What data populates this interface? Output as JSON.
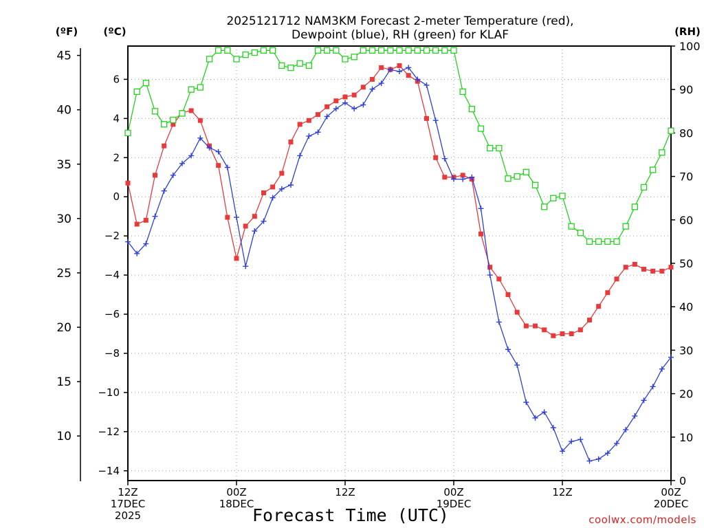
{
  "chart_data": {
    "type": "line",
    "title_line1": "2025121712 NAM3KM Forecast 2-meter Temperature (red),",
    "title_line2": "Dewpoint (blue), RH (green) for KLAF",
    "unit_f": "(ºF)",
    "unit_c": "(ºC)",
    "unit_rh": "(RH)",
    "xlabel": "Forecast Time (UTC)",
    "credit": "coolwx.com/models",
    "x_ticks": [
      {
        "hour": 0,
        "line1": "12Z",
        "line2": "17DEC",
        "line3": "2025"
      },
      {
        "hour": 12,
        "line1": "00Z",
        "line2": "18DEC",
        "line3": ""
      },
      {
        "hour": 24,
        "line1": "12Z",
        "line2": "",
        "line3": ""
      },
      {
        "hour": 36,
        "line1": "00Z",
        "line2": "19DEC",
        "line3": ""
      },
      {
        "hour": 48,
        "line1": "12Z",
        "line2": "",
        "line3": ""
      },
      {
        "hour": 60,
        "line1": "00Z",
        "line2": "20DEC",
        "line3": ""
      }
    ],
    "x_range_hours": [
      0,
      60
    ],
    "ylim_c": [
      -14.5,
      7.7
    ],
    "ylim_rh": [
      0,
      100
    ],
    "y_ticks_c": [
      "6",
      "4",
      "2",
      "0",
      "−2",
      "−4",
      "−6",
      "−8",
      "−10",
      "−12",
      "−14"
    ],
    "y_ticks_c_values": [
      6,
      4,
      2,
      0,
      -2,
      -4,
      -6,
      -8,
      -10,
      -12,
      -14
    ],
    "y_ticks_f": [
      "45",
      "40",
      "35",
      "30",
      "25",
      "20",
      "15",
      "10"
    ],
    "y_ticks_f_values": [
      45,
      40,
      35,
      30,
      25,
      20,
      15,
      10
    ],
    "y_ticks_rh": [
      "100",
      "90",
      "80",
      "70",
      "60",
      "50",
      "40",
      "30",
      "20",
      "10",
      "0"
    ],
    "y_ticks_rh_values": [
      100,
      90,
      80,
      70,
      60,
      50,
      40,
      30,
      20,
      10,
      0
    ],
    "series": [
      {
        "name": "Temperature (°C)",
        "color": "#e8393b",
        "marker": "filled-square",
        "axis": "c",
        "x": [
          0,
          1,
          2,
          3,
          4,
          5,
          6,
          7,
          8,
          9,
          10,
          11,
          12,
          13,
          14,
          15,
          16,
          17,
          18,
          19,
          20,
          21,
          22,
          23,
          24,
          25,
          26,
          27,
          28,
          29,
          30,
          31,
          32,
          33,
          34,
          35,
          36,
          37,
          38,
          39,
          40,
          41,
          42,
          43,
          44,
          45,
          46,
          47,
          48,
          49,
          50,
          51,
          52,
          53,
          54,
          55,
          56,
          57,
          58,
          59,
          60
        ],
        "values": [
          0.7,
          -1.4,
          -1.2,
          1.1,
          2.6,
          3.7,
          4.3,
          4.4,
          3.9,
          2.6,
          1.6,
          -1.05,
          -3.15,
          -1.5,
          -1.0,
          0.2,
          0.5,
          1.2,
          2.8,
          3.7,
          3.9,
          4.2,
          4.6,
          4.9,
          5.1,
          5.2,
          5.6,
          6.0,
          6.6,
          6.5,
          6.7,
          6.2,
          5.9,
          4.0,
          2.0,
          1.0,
          1.0,
          1.1,
          0.9,
          -1.9,
          -3.6,
          -4.2,
          -5.0,
          -5.9,
          -6.6,
          -6.6,
          -6.8,
          -7.1,
          -7.0,
          -7.0,
          -6.8,
          -6.3,
          -5.6,
          -4.9,
          -4.2,
          -3.6,
          -3.45,
          -3.7,
          -3.8,
          -3.8,
          -3.6
        ]
      },
      {
        "name": "Dewpoint (°C)",
        "color": "#2c3fdc",
        "marker": "plus",
        "axis": "c",
        "x": [
          0,
          1,
          2,
          3,
          4,
          5,
          6,
          7,
          8,
          9,
          10,
          11,
          12,
          13,
          14,
          15,
          16,
          17,
          18,
          19,
          20,
          21,
          22,
          23,
          24,
          25,
          26,
          27,
          28,
          29,
          30,
          31,
          32,
          33,
          34,
          35,
          36,
          37,
          38,
          39,
          40,
          41,
          42,
          43,
          44,
          45,
          46,
          47,
          48,
          49,
          50,
          51,
          52,
          53,
          54,
          55,
          56,
          57,
          58,
          59,
          60
        ],
        "values": [
          -2.3,
          -2.9,
          -2.4,
          -1.0,
          0.3,
          1.1,
          1.7,
          2.1,
          3.0,
          2.5,
          2.3,
          1.5,
          -1.05,
          -3.55,
          -1.75,
          -1.25,
          -0.05,
          0.4,
          0.6,
          2.1,
          3.1,
          3.3,
          4.1,
          4.5,
          4.8,
          4.5,
          4.7,
          5.5,
          5.8,
          6.5,
          6.4,
          6.6,
          6.0,
          5.7,
          3.9,
          1.95,
          0.9,
          0.9,
          1.0,
          -0.6,
          -4.0,
          -6.4,
          -7.8,
          -8.6,
          -10.5,
          -11.3,
          -11.0,
          -11.8,
          -13.0,
          -12.5,
          -12.4,
          -13.5,
          -13.4,
          -13.1,
          -12.6,
          -11.9,
          -11.2,
          -10.4,
          -9.7,
          -8.8,
          -8.2
        ]
      },
      {
        "name": "RH (%)",
        "color": "#1fd41a",
        "marker": "open-square",
        "axis": "rh",
        "x": [
          0,
          1,
          2,
          3,
          4,
          5,
          6,
          7,
          8,
          9,
          10,
          11,
          12,
          13,
          14,
          15,
          16,
          17,
          18,
          19,
          20,
          21,
          22,
          23,
          24,
          25,
          26,
          27,
          28,
          29,
          30,
          31,
          32,
          33,
          34,
          35,
          36,
          37,
          38,
          39,
          40,
          41,
          42,
          43,
          44,
          45,
          46,
          47,
          48,
          49,
          50,
          51,
          52,
          53,
          54,
          55,
          56,
          57,
          58,
          59,
          60
        ],
        "values": [
          80,
          89.5,
          91.5,
          85,
          82,
          83,
          84.5,
          90,
          90.5,
          97,
          99,
          99,
          97,
          98,
          98.5,
          99,
          99,
          95.5,
          95,
          96,
          95.5,
          99,
          99,
          99,
          97,
          97.5,
          99,
          99,
          99,
          99,
          99,
          99,
          99,
          99,
          99,
          99,
          99,
          89.5,
          85.5,
          81,
          76.5,
          76.5,
          69.5,
          70,
          71,
          68,
          63,
          65,
          65.5,
          58.5,
          57,
          55,
          55,
          55,
          55,
          58.5,
          63,
          67.5,
          71.5,
          75.5,
          80.5
        ]
      }
    ]
  }
}
